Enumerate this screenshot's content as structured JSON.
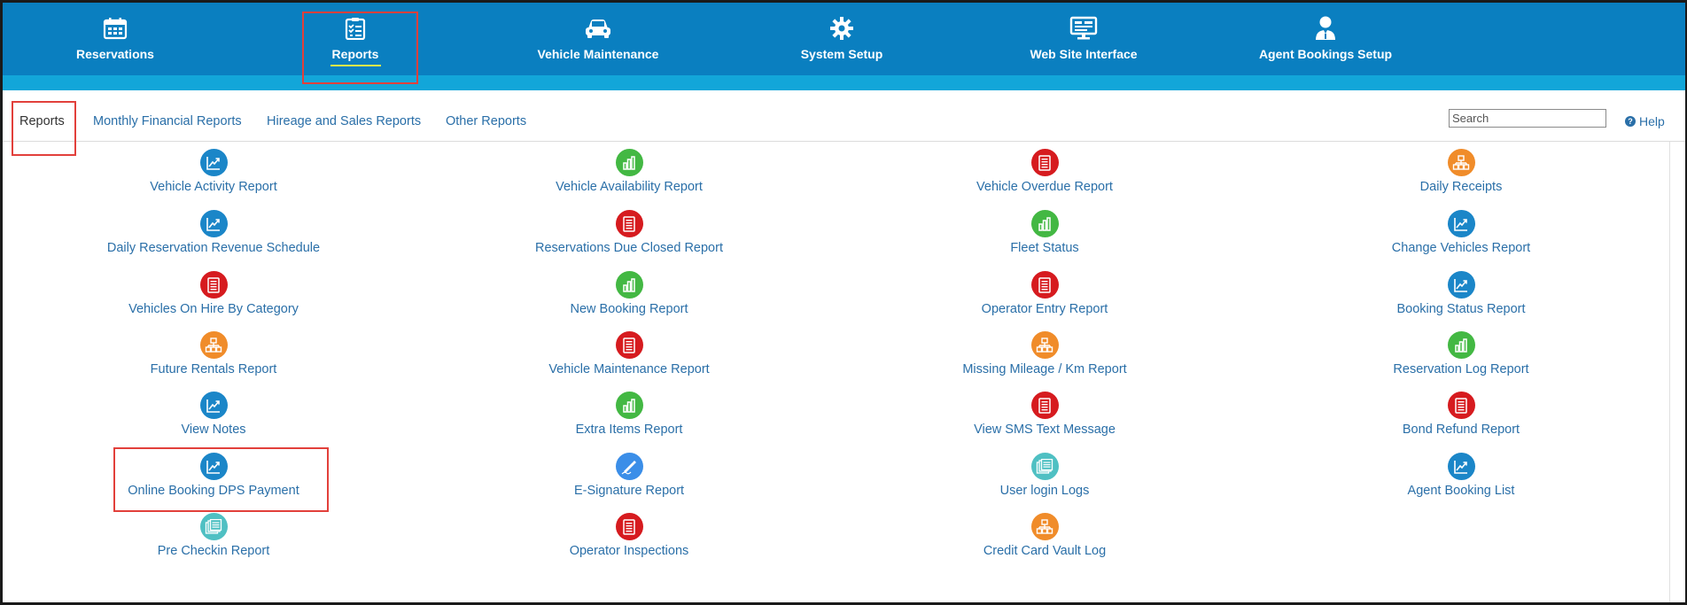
{
  "nav": {
    "items": [
      {
        "label": "Reservations",
        "icon": "calendar-icon"
      },
      {
        "label": "Reports",
        "icon": "checklist-icon"
      },
      {
        "label": "Vehicle Maintenance",
        "icon": "car-icon"
      },
      {
        "label": "System Setup",
        "icon": "gear-icon"
      },
      {
        "label": "Web Site Interface",
        "icon": "monitor-icon"
      },
      {
        "label": "Agent Bookings Setup",
        "icon": "agent-icon"
      }
    ],
    "active": "Reports"
  },
  "tabs": {
    "items": [
      "Reports",
      "Monthly Financial Reports",
      "Hireage and Sales Reports",
      "Other Reports"
    ],
    "active": "Reports"
  },
  "search": {
    "placeholder": "Search",
    "value": ""
  },
  "help": {
    "label": "Help"
  },
  "reports": {
    "columns": [
      [
        {
          "label": "Vehicle Activity Report",
          "icon": "trend-chart-icon",
          "color": "#1b86c8"
        },
        {
          "label": "Daily Reservation Revenue Schedule",
          "icon": "trend-chart-icon",
          "color": "#1b86c8"
        },
        {
          "label": "Vehicles On Hire By Category",
          "icon": "document-icon",
          "color": "#d61b1f"
        },
        {
          "label": "Future Rentals Report",
          "icon": "org-chart-icon",
          "color": "#f08c2a"
        },
        {
          "label": "View Notes",
          "icon": "trend-chart-icon",
          "color": "#1b86c8"
        },
        {
          "label": "Online Booking DPS Payment",
          "icon": "trend-chart-icon",
          "color": "#1b86c8"
        },
        {
          "label": "Pre Checkin Report",
          "icon": "stacked-docs-icon",
          "color": "#4fc0c3"
        }
      ],
      [
        {
          "label": "Vehicle Availability Report",
          "icon": "bar-chart-icon",
          "color": "#43b843"
        },
        {
          "label": "Reservations Due Closed Report",
          "icon": "document-icon",
          "color": "#d61b1f"
        },
        {
          "label": "New Booking Report",
          "icon": "bar-chart-icon",
          "color": "#43b843"
        },
        {
          "label": "Vehicle Maintenance Report",
          "icon": "document-icon",
          "color": "#d61b1f"
        },
        {
          "label": "Extra Items Report",
          "icon": "bar-chart-icon",
          "color": "#43b843"
        },
        {
          "label": "E-Signature Report",
          "icon": "pen-icon",
          "color": "#3b8ee8"
        },
        {
          "label": "Operator Inspections",
          "icon": "document-icon",
          "color": "#d61b1f"
        }
      ],
      [
        {
          "label": "Vehicle Overdue Report",
          "icon": "document-icon",
          "color": "#d61b1f"
        },
        {
          "label": "Fleet Status",
          "icon": "bar-chart-icon",
          "color": "#43b843"
        },
        {
          "label": "Operator Entry Report",
          "icon": "document-icon",
          "color": "#d61b1f"
        },
        {
          "label": "Missing Mileage / Km Report",
          "icon": "org-chart-icon",
          "color": "#f08c2a"
        },
        {
          "label": "View SMS Text Message",
          "icon": "document-icon",
          "color": "#d61b1f"
        },
        {
          "label": "User login Logs",
          "icon": "stacked-docs-icon",
          "color": "#4fc0c3"
        },
        {
          "label": "Credit Card Vault Log",
          "icon": "org-chart-icon",
          "color": "#f08c2a"
        }
      ],
      [
        {
          "label": "Daily Receipts",
          "icon": "org-chart-icon",
          "color": "#f08c2a"
        },
        {
          "label": "Change Vehicles Report",
          "icon": "trend-chart-icon",
          "color": "#1b86c8"
        },
        {
          "label": "Booking Status Report",
          "icon": "trend-chart-icon",
          "color": "#1b86c8"
        },
        {
          "label": "Reservation Log Report",
          "icon": "bar-chart-icon",
          "color": "#43b843"
        },
        {
          "label": "Bond Refund Report",
          "icon": "document-icon",
          "color": "#d61b1f"
        },
        {
          "label": "Agent Booking List",
          "icon": "trend-chart-icon",
          "color": "#1b86c8"
        }
      ]
    ]
  },
  "colors": {
    "nav_bg": "#0a7fc0",
    "subbar_bg": "#12a6d9",
    "link": "#2a6fa8",
    "highlight": "#e2403b",
    "active_underline": "#f2e84a"
  }
}
